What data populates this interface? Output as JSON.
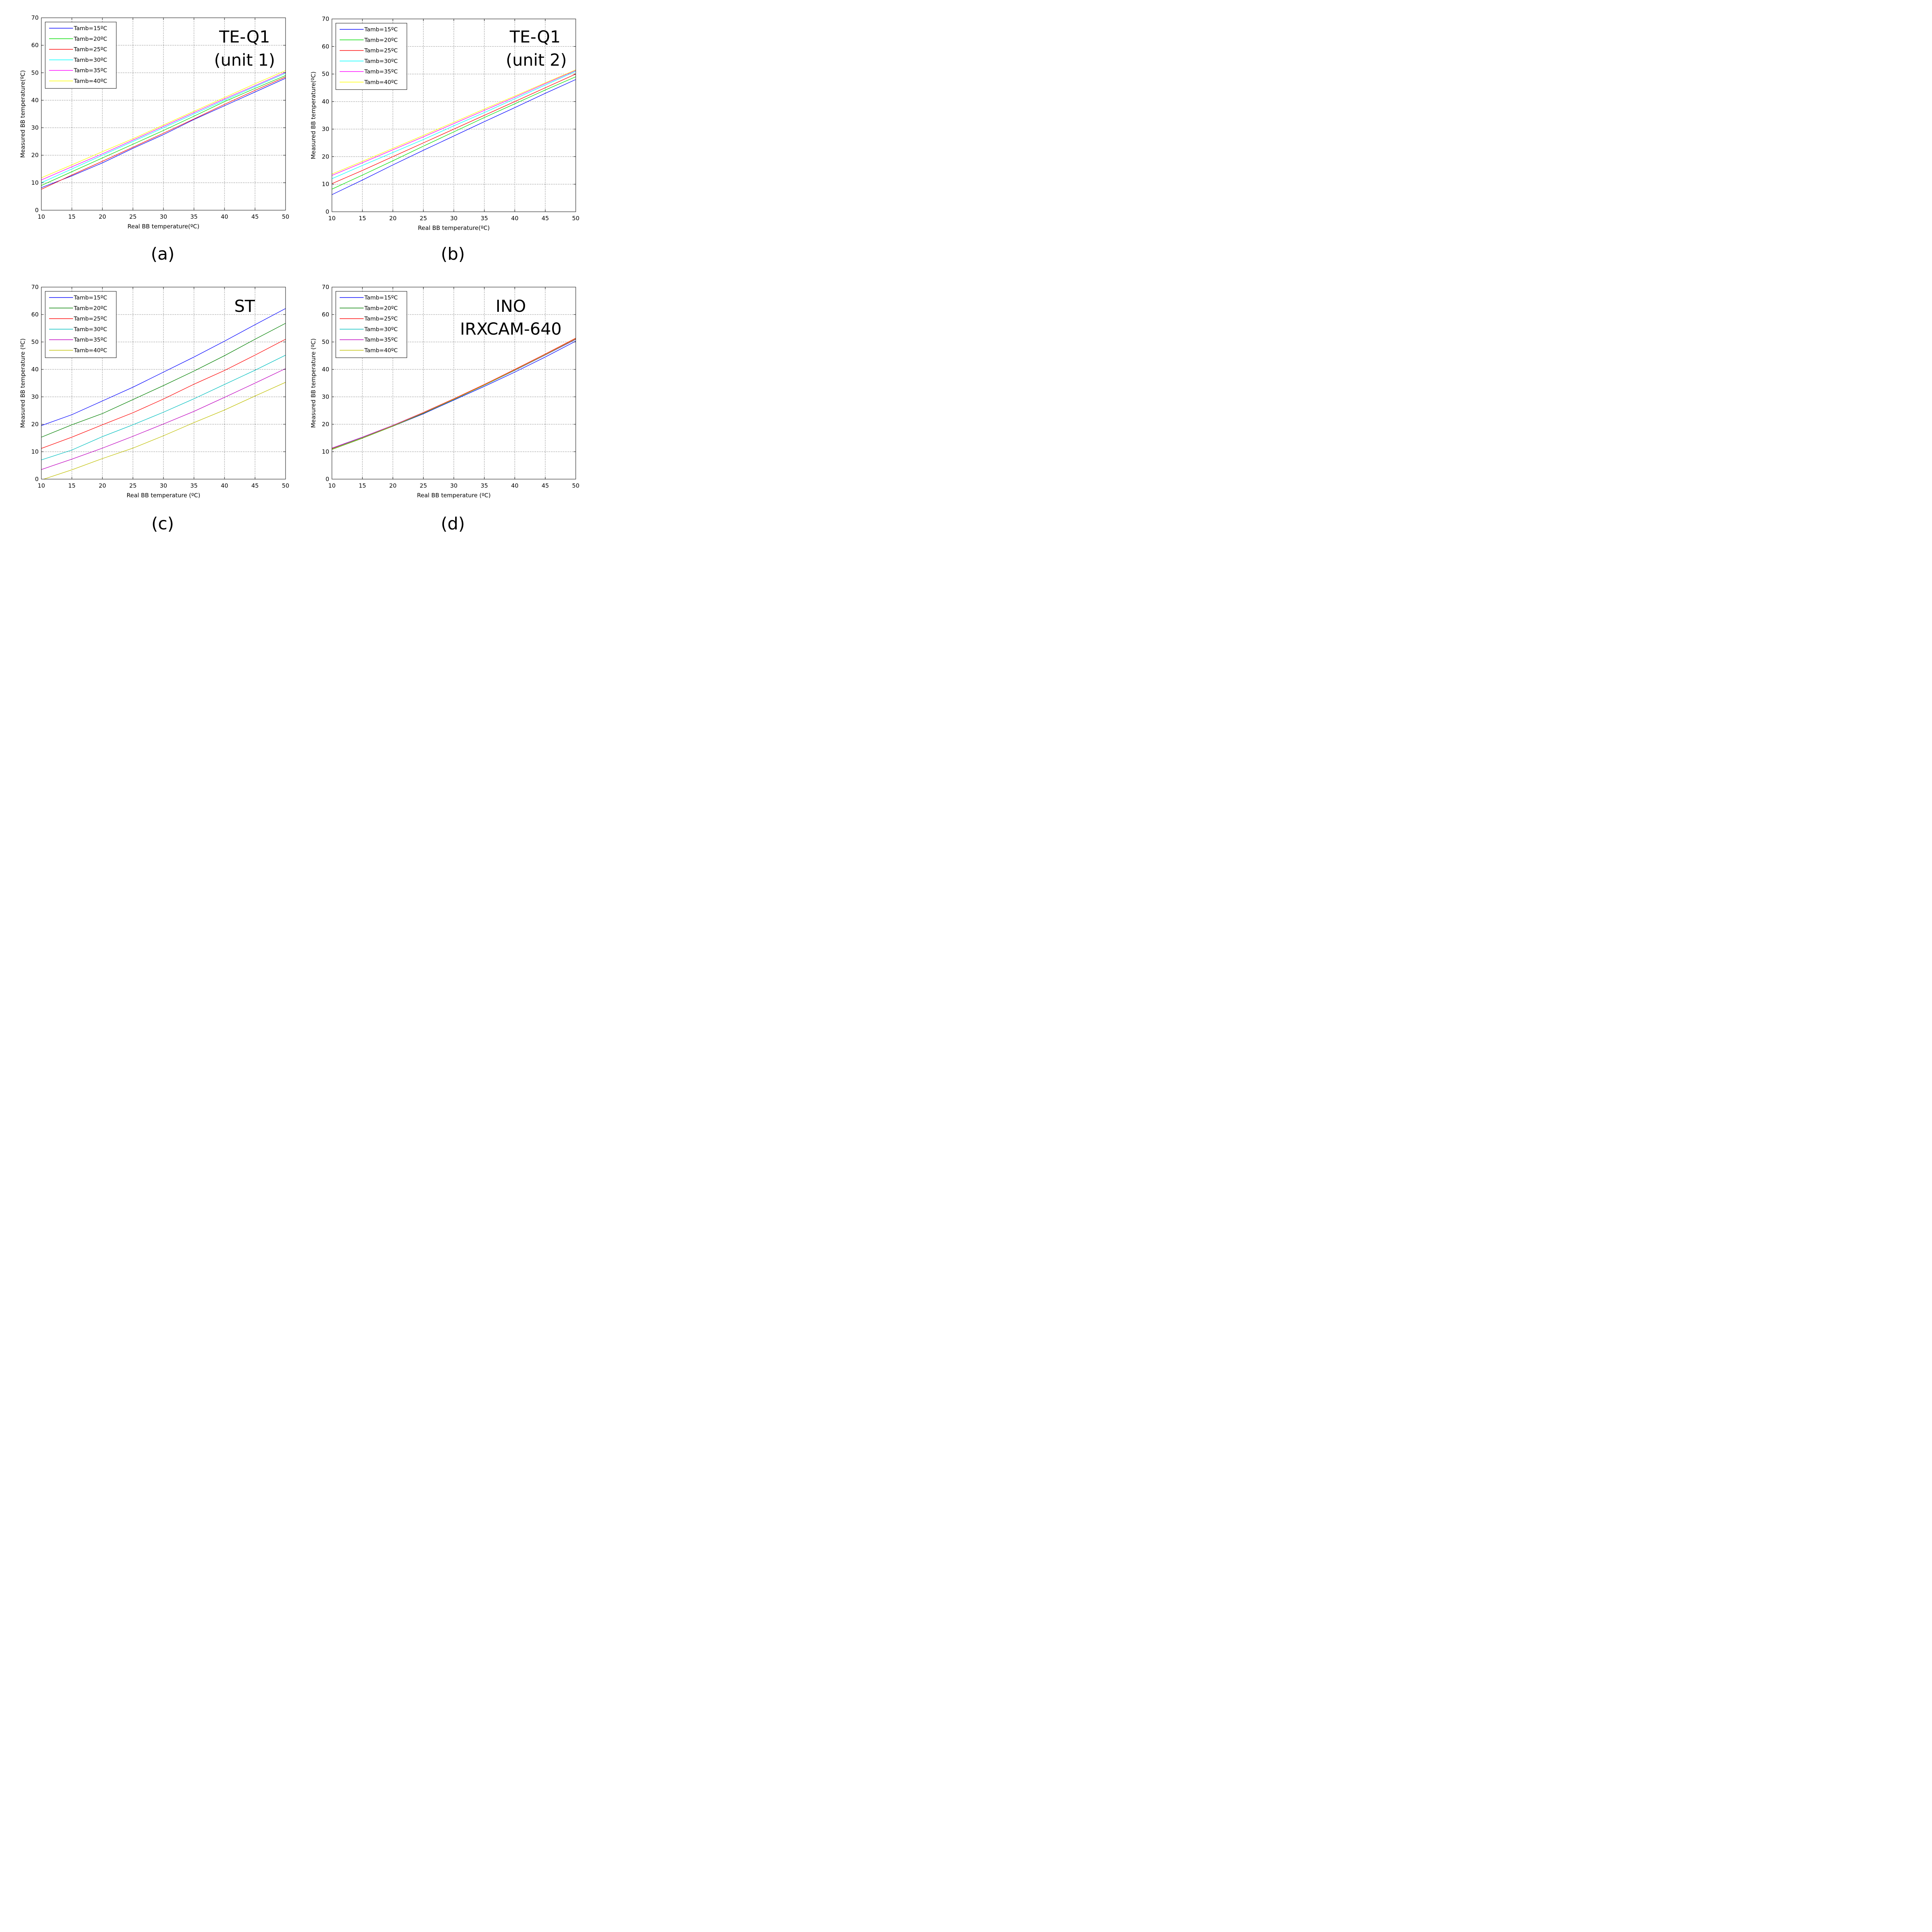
{
  "chart_data": [
    {
      "type": "line",
      "panel_label": "(a)",
      "annotation": [
        "TE-Q1",
        "(unit 1)"
      ],
      "xlabel": "Real BB temperature(ºC)",
      "ylabel": "Measured BB temperature(ºC)",
      "xlim": [
        10,
        50
      ],
      "ylim": [
        0,
        70
      ],
      "xticks": [
        10,
        15,
        20,
        25,
        30,
        35,
        40,
        45,
        50
      ],
      "yticks": [
        0,
        10,
        20,
        30,
        40,
        50,
        60,
        70
      ],
      "grid": true,
      "legend": "top-left",
      "series": [
        {
          "name": "Tamb=15ºC",
          "color": "#0000ff",
          "x": [
            10,
            15,
            20,
            25,
            30,
            35,
            40,
            45,
            50
          ],
          "y": [
            8.2,
            12.5,
            17.2,
            22.5,
            27.5,
            33.0,
            38.0,
            43.0,
            48.0
          ]
        },
        {
          "name": "Tamb=20ºC",
          "color": "#00dd00",
          "x": [
            10,
            15,
            20,
            25,
            30,
            35,
            40,
            45,
            50
          ],
          "y": [
            9.0,
            14.0,
            19.0,
            24.0,
            29.0,
            34.2,
            39.5,
            44.3,
            49.0
          ]
        },
        {
          "name": "Tamb=25ºC",
          "color": "#ff0000",
          "x": [
            10,
            15,
            20,
            25,
            30,
            35,
            40,
            45,
            50
          ],
          "y": [
            7.6,
            12.8,
            17.8,
            22.9,
            28.0,
            33.2,
            38.5,
            43.6,
            48.5
          ]
        },
        {
          "name": "Tamb=30ºC",
          "color": "#00ffff",
          "x": [
            10,
            15,
            20,
            25,
            30,
            35,
            40,
            45,
            50
          ],
          "y": [
            10.0,
            15.0,
            20.0,
            25.0,
            30.0,
            35.0,
            40.0,
            45.0,
            49.8
          ]
        },
        {
          "name": "Tamb=35ºC",
          "color": "#ff00ff",
          "x": [
            10,
            15,
            20,
            25,
            30,
            35,
            40,
            45,
            50
          ],
          "y": [
            11.0,
            15.8,
            20.5,
            25.5,
            30.5,
            35.5,
            40.5,
            45.3,
            50.2
          ]
        },
        {
          "name": "Tamb=40ºC",
          "color": "#ffff00",
          "x": [
            10,
            15,
            20,
            25,
            30,
            35,
            40,
            45,
            50
          ],
          "y": [
            11.8,
            16.5,
            21.3,
            26.0,
            31.0,
            36.0,
            41.0,
            46.0,
            50.8
          ]
        }
      ]
    },
    {
      "type": "line",
      "panel_label": "(b)",
      "annotation": [
        "TE-Q1",
        "(unit 2)"
      ],
      "xlabel": "Real BB temperature(ºC)",
      "ylabel": "Measured BB temperature(ºC)",
      "xlim": [
        10,
        50
      ],
      "ylim": [
        0,
        70
      ],
      "xticks": [
        10,
        15,
        20,
        25,
        30,
        35,
        40,
        45,
        50
      ],
      "yticks": [
        0,
        10,
        20,
        30,
        40,
        50,
        60,
        70
      ],
      "grid": true,
      "legend": "top-left",
      "series": [
        {
          "name": "Tamb=15ºC",
          "color": "#0000ff",
          "x": [
            10,
            15,
            20,
            25,
            30,
            35,
            40,
            45,
            50
          ],
          "y": [
            6.2,
            11.5,
            17.0,
            22.3,
            27.5,
            32.7,
            37.8,
            43.0,
            48.0
          ]
        },
        {
          "name": "Tamb=20ºC",
          "color": "#00dd00",
          "x": [
            10,
            15,
            20,
            25,
            30,
            35,
            40,
            45,
            50
          ],
          "y": [
            8.2,
            13.3,
            18.5,
            23.8,
            29.0,
            34.2,
            39.2,
            44.2,
            49.0
          ]
        },
        {
          "name": "Tamb=25ºC",
          "color": "#ff0000",
          "x": [
            10,
            15,
            20,
            25,
            30,
            35,
            40,
            45,
            50
          ],
          "y": [
            10.2,
            15.0,
            20.0,
            25.0,
            30.0,
            35.0,
            40.0,
            45.0,
            50.0
          ]
        },
        {
          "name": "Tamb=30ºC",
          "color": "#00ffff",
          "x": [
            10,
            15,
            20,
            25,
            30,
            35,
            40,
            45,
            50
          ],
          "y": [
            12.0,
            16.8,
            21.5,
            26.2,
            31.2,
            36.0,
            41.0,
            46.0,
            51.0
          ]
        },
        {
          "name": "Tamb=35ºC",
          "color": "#ff00ff",
          "x": [
            10,
            15,
            20,
            25,
            30,
            35,
            40,
            45,
            50
          ],
          "y": [
            13.2,
            17.8,
            22.5,
            27.2,
            32.0,
            36.8,
            41.6,
            46.5,
            51.3
          ]
        },
        {
          "name": "Tamb=40ºC",
          "color": "#ffff00",
          "x": [
            10,
            15,
            20,
            25,
            30,
            35,
            40,
            45,
            50
          ],
          "y": [
            13.7,
            18.3,
            23.0,
            27.7,
            32.5,
            37.3,
            42.0,
            46.8,
            51.5
          ]
        }
      ]
    },
    {
      "type": "line",
      "panel_label": "(c)",
      "annotation": [
        "ST"
      ],
      "xlabel": "Real BB temperature (ºC)",
      "ylabel": "Measured BB temperature (ºC)",
      "xlim": [
        10,
        50
      ],
      "ylim": [
        0,
        70
      ],
      "xticks": [
        10,
        15,
        20,
        25,
        30,
        35,
        40,
        45,
        50
      ],
      "yticks": [
        0,
        10,
        20,
        30,
        40,
        50,
        60,
        70
      ],
      "grid": true,
      "legend": "top-left",
      "series": [
        {
          "name": "Tamb=15ºC",
          "color": "#0000ff",
          "x": [
            10,
            15,
            20,
            25,
            30,
            35,
            40,
            45,
            50
          ],
          "y": [
            19.5,
            23.5,
            28.5,
            33.5,
            39.0,
            44.5,
            50.3,
            56.3,
            62.2
          ]
        },
        {
          "name": "Tamb=20ºC",
          "color": "#008000",
          "x": [
            10,
            15,
            20,
            25,
            30,
            35,
            40,
            45,
            50
          ],
          "y": [
            15.3,
            19.8,
            23.9,
            29.0,
            34.1,
            39.4,
            45.0,
            51.0,
            56.8
          ]
        },
        {
          "name": "Tamb=25ºC",
          "color": "#ff0000",
          "x": [
            10,
            15,
            20,
            25,
            30,
            35,
            40,
            45,
            50
          ],
          "y": [
            11.2,
            15.3,
            19.8,
            24.2,
            29.2,
            34.6,
            39.6,
            45.2,
            51.0
          ]
        },
        {
          "name": "Tamb=30ºC",
          "color": "#00bfbf",
          "x": [
            10,
            15,
            20,
            25,
            30,
            35,
            40,
            45,
            50
          ],
          "y": [
            7.0,
            10.6,
            15.5,
            19.8,
            24.4,
            29.3,
            34.5,
            39.7,
            45.2
          ]
        },
        {
          "name": "Tamb=35ºC",
          "color": "#bf00bf",
          "x": [
            10,
            15,
            20,
            25,
            30,
            35,
            40,
            45,
            50
          ],
          "y": [
            3.5,
            7.3,
            11.3,
            15.6,
            20.1,
            24.7,
            29.8,
            35.0,
            40.3
          ]
        },
        {
          "name": "Tamb=40ºC",
          "color": "#bfbf00",
          "x": [
            10,
            15,
            20,
            25,
            30,
            35,
            40,
            45,
            50
          ],
          "y": [
            -0.3,
            3.4,
            7.5,
            11.3,
            15.8,
            20.6,
            25.2,
            30.3,
            35.3
          ]
        }
      ]
    },
    {
      "type": "line",
      "panel_label": "(d)",
      "annotation": [
        "INO",
        "IRXCAM-640"
      ],
      "xlabel": "Real BB temperature (ºC)",
      "ylabel": "Measured BB temperature (ºC)",
      "xlim": [
        10,
        50
      ],
      "ylim": [
        0,
        70
      ],
      "xticks": [
        10,
        15,
        20,
        25,
        30,
        35,
        40,
        45,
        50
      ],
      "yticks": [
        0,
        10,
        20,
        30,
        40,
        50,
        60,
        70
      ],
      "grid": true,
      "legend": "top-left",
      "series": [
        {
          "name": "Tamb=15ºC",
          "color": "#0000ff",
          "x": [
            10,
            15,
            20,
            25,
            30,
            35,
            40,
            45,
            50
          ],
          "y": [
            11.3,
            15.3,
            19.3,
            23.8,
            28.8,
            33.8,
            39.0,
            44.5,
            50.3
          ]
        },
        {
          "name": "Tamb=20ºC",
          "color": "#008000",
          "x": [
            10,
            15,
            20,
            25,
            30,
            35,
            40,
            45,
            50
          ],
          "y": [
            10.8,
            14.9,
            19.3,
            24.0,
            29.0,
            34.2,
            39.7,
            45.3,
            51.0
          ]
        },
        {
          "name": "Tamb=25ºC",
          "color": "#ff0000",
          "x": [
            10,
            15,
            20,
            25,
            30,
            35,
            40,
            45,
            50
          ],
          "y": [
            11.2,
            15.3,
            19.6,
            24.3,
            29.3,
            34.5,
            40.0,
            45.6,
            51.4
          ]
        },
        {
          "name": "Tamb=30ºC",
          "color": "#00bfbf",
          "x": [
            10,
            15,
            20,
            25,
            30,
            35,
            40,
            45,
            50
          ],
          "y": [
            11.0,
            15.1,
            19.4,
            24.1,
            29.0,
            34.2,
            39.6,
            45.2,
            50.9
          ]
        },
        {
          "name": "Tamb=35ºC",
          "color": "#bf00bf",
          "x": [
            10,
            15,
            20,
            25,
            30,
            35,
            40,
            45,
            50
          ],
          "y": [
            11.3,
            15.3,
            19.6,
            24.2,
            29.1,
            34.3,
            39.7,
            45.3,
            51.0
          ]
        },
        {
          "name": "Tamb=40ºC",
          "color": "#bfbf00",
          "x": [
            10,
            15,
            20,
            25,
            30,
            35,
            40,
            45,
            50
          ],
          "y": [
            10.9,
            15.0,
            19.4,
            24.1,
            29.1,
            34.3,
            39.8,
            45.4,
            51.2
          ]
        }
      ]
    }
  ]
}
